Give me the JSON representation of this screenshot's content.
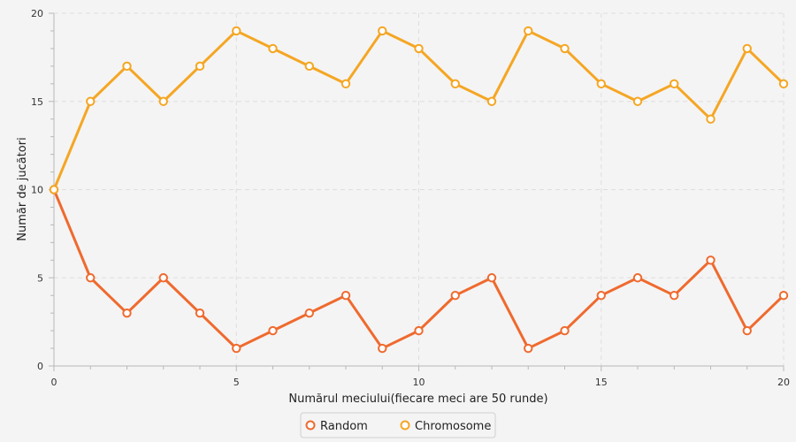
{
  "chart_data": {
    "type": "line",
    "title": "",
    "xlabel": "Numărul meciului(fiecare meci are 50 runde)",
    "ylabel": "Număr de jucători",
    "xlim": [
      0,
      20
    ],
    "ylim": [
      0,
      20
    ],
    "x_ticks": [
      0,
      5,
      10,
      15,
      20
    ],
    "y_ticks": [
      0,
      5,
      10,
      15,
      20
    ],
    "x_minor_ticks": [
      0,
      1,
      2,
      3,
      4,
      5,
      6,
      7,
      8,
      9,
      10,
      11,
      12,
      13,
      14,
      15,
      16,
      17,
      18,
      19,
      20
    ],
    "grid": true,
    "legend_position": "bottom-center",
    "x": [
      0,
      1,
      2,
      3,
      4,
      5,
      6,
      7,
      8,
      9,
      10,
      11,
      12,
      13,
      14,
      15,
      16,
      17,
      18,
      19,
      20
    ],
    "series": [
      {
        "name": "Random",
        "color": "#ef6a2e",
        "values": [
          10,
          5,
          3,
          5,
          3,
          1,
          2,
          3,
          4,
          1,
          2,
          4,
          5,
          1,
          2,
          4,
          5,
          4,
          6,
          2,
          4
        ]
      },
      {
        "name": "Chromosome",
        "color": "#f5a623",
        "values": [
          10,
          15,
          17,
          15,
          17,
          19,
          18,
          17,
          16,
          19,
          18,
          16,
          15,
          19,
          18,
          16,
          15,
          16,
          14,
          18,
          16
        ]
      }
    ]
  }
}
